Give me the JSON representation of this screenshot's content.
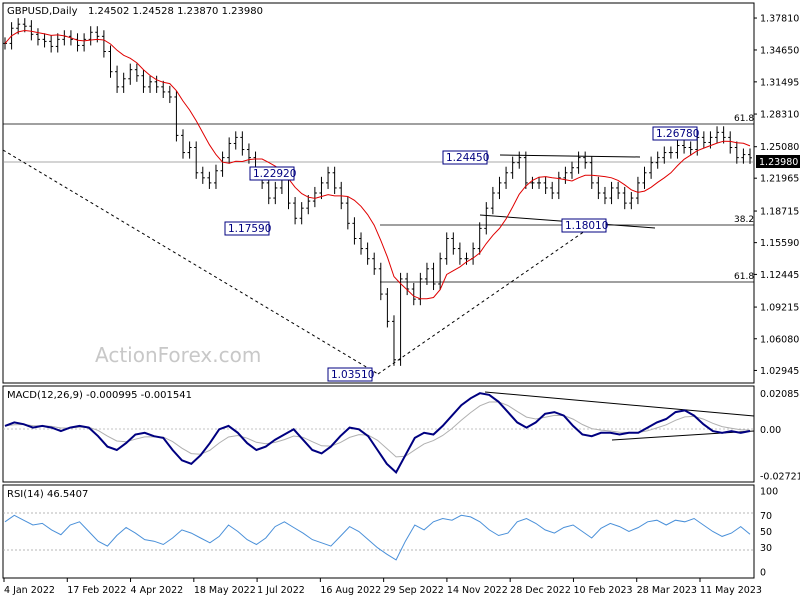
{
  "header": {
    "symbol": "GBPUSD,Daily",
    "ohlc": "1.24502 1.24528 1.23870 1.23980"
  },
  "watermark": "ActionForex.com",
  "current_price": "1.23980",
  "colors": {
    "price_bars": "#000000",
    "sma": "#e00000",
    "macd_line": "#000080",
    "macd_signal": "#b0b0b0",
    "rsi": "#4a90d9",
    "annotation": "#000080",
    "current_price_bg": "#000000"
  },
  "chart_data": [
    {
      "type": "line",
      "title": "GBPUSD,Daily 1.24502 1.24528 1.23870 1.23980",
      "x_tick_labels": [
        "4 Jan 2022",
        "17 Feb 2022",
        "4 Apr 2022",
        "18 May 2022",
        "1 Jul 2022",
        "16 Aug 2022",
        "29 Sep 2022",
        "14 Nov 2022",
        "28 Dec 2022",
        "10 Feb 2023",
        "28 Mar 2023",
        "11 May 2023"
      ],
      "y_tick_labels": [
        "1.37810",
        "1.34650",
        "1.31495",
        "1.28310",
        "1.25080",
        "1.21965",
        "1.18715",
        "1.15590",
        "1.12445",
        "1.09215",
        "1.06080",
        "1.02945"
      ],
      "ylim": [
        1.02,
        1.39
      ],
      "series": [
        {
          "values": [
            1.353,
            1.368,
            1.372,
            1.37,
            1.362,
            1.357,
            1.355,
            1.35,
            1.357,
            1.36,
            1.357,
            1.351,
            1.357,
            1.364,
            1.36,
            1.345,
            1.325,
            1.31,
            1.318,
            1.327,
            1.321,
            1.31,
            1.315,
            1.31,
            1.305,
            1.3,
            1.262,
            1.245,
            1.25,
            1.225,
            1.22,
            1.215,
            1.227,
            1.24,
            1.254,
            1.26,
            1.248,
            1.24,
            1.225,
            1.215,
            1.2,
            1.21,
            1.22,
            1.195,
            1.18,
            1.19,
            1.197,
            1.205,
            1.215,
            1.225,
            1.21,
            1.195,
            1.175,
            1.16,
            1.15,
            1.14,
            1.13,
            1.105,
            1.078,
            1.04,
            1.12,
            1.11,
            1.1,
            1.12,
            1.13,
            1.115,
            1.14,
            1.16,
            1.15,
            1.14,
            1.14,
            1.15,
            1.17,
            1.19,
            1.205,
            1.215,
            1.225,
            1.235,
            1.24,
            1.215,
            1.215,
            1.215,
            1.21,
            1.205,
            1.22,
            1.225,
            1.23,
            1.24,
            1.235,
            1.215,
            1.205,
            1.2,
            1.21,
            1.205,
            1.195,
            1.2,
            1.215,
            1.225,
            1.235,
            1.24,
            1.245,
            1.245,
            1.252,
            1.25,
            1.248,
            1.26,
            1.255,
            1.26,
            1.265,
            1.26,
            1.25,
            1.24,
            1.243,
            1.2398
          ]
        }
      ],
      "annotations": [
        "1.22920",
        "1.17590",
        "1.03510",
        "1.24450",
        "1.18010",
        "1.26780"
      ],
      "fib_labels": [
        "61.8",
        "38.2",
        "61.8"
      ]
    },
    {
      "type": "line",
      "title": "MACD(12,26,9) -0.000995 -0.001541",
      "y_tick_labels": [
        "0.020858",
        "0.00",
        "-0.027213"
      ],
      "ylim": [
        -0.03,
        0.024
      ],
      "series": [
        {
          "values": [
            0.002,
            0.004,
            0.003,
            0.001,
            0.002,
            0.001,
            -0.001,
            0.001,
            0.002,
            0.001,
            -0.004,
            -0.01,
            -0.012,
            -0.008,
            -0.003,
            -0.002,
            -0.004,
            -0.005,
            -0.012,
            -0.018,
            -0.02,
            -0.015,
            -0.008,
            0.0,
            0.002,
            -0.002,
            -0.008,
            -0.012,
            -0.01,
            -0.006,
            -0.003,
            0.0,
            -0.006,
            -0.012,
            -0.014,
            -0.01,
            -0.004,
            0.001,
            0.0,
            -0.004,
            -0.012,
            -0.02,
            -0.025,
            -0.015,
            -0.005,
            -0.002,
            -0.003,
            0.002,
            0.008,
            0.014,
            0.018,
            0.021,
            0.02,
            0.016,
            0.01,
            0.004,
            0.001,
            0.004,
            0.009,
            0.01,
            0.008,
            0.002,
            -0.003,
            -0.004,
            -0.002,
            -0.002,
            -0.003,
            -0.002,
            -0.002,
            0.001,
            0.004,
            0.006,
            0.01,
            0.011,
            0.008,
            0.003,
            -0.001,
            -0.002,
            -0.001,
            -0.002,
            -0.00099
          ]
        }
      ]
    },
    {
      "type": "line",
      "title": "RSI(14) 46.5407",
      "y_tick_labels": [
        "100",
        "70",
        "50",
        "30",
        "0"
      ],
      "ylim": [
        0,
        100
      ],
      "series": [
        {
          "values": [
            62,
            70,
            64,
            58,
            60,
            52,
            46,
            58,
            62,
            50,
            38,
            32,
            45,
            55,
            48,
            40,
            38,
            34,
            42,
            52,
            48,
            42,
            36,
            44,
            58,
            50,
            40,
            34,
            42,
            56,
            62,
            55,
            48,
            40,
            36,
            32,
            44,
            56,
            50,
            40,
            30,
            22,
            15,
            38,
            58,
            52,
            62,
            66,
            64,
            70,
            68,
            62,
            52,
            45,
            48,
            62,
            66,
            60,
            52,
            48,
            55,
            58,
            50,
            42,
            54,
            60,
            56,
            50,
            55,
            62,
            64,
            58,
            64,
            62,
            66,
            58,
            50,
            44,
            48,
            56,
            46.5407
          ]
        }
      ]
    }
  ]
}
